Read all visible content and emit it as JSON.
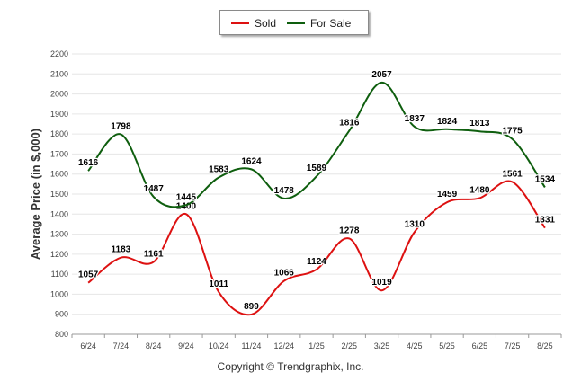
{
  "chart_data": {
    "type": "line",
    "title": "",
    "xlabel": "",
    "ylabel": "Average Price (in $,000)",
    "ylim": [
      800,
      2200
    ],
    "yticks": [
      800,
      900,
      1000,
      1100,
      1200,
      1300,
      1400,
      1500,
      1600,
      1700,
      1800,
      1900,
      2000,
      2100,
      2200
    ],
    "categories": [
      "6/24",
      "7/24",
      "8/24",
      "9/24",
      "10/24",
      "11/24",
      "12/24",
      "1/25",
      "2/25",
      "3/25",
      "4/25",
      "5/25",
      "6/25",
      "7/25",
      "8/25"
    ],
    "series": [
      {
        "name": "Sold",
        "color": "#dd1111",
        "values": [
          1057,
          1183,
          1161,
          1400,
          1011,
          899,
          1066,
          1124,
          1278,
          1019,
          1310,
          1459,
          1480,
          1561,
          1331
        ]
      },
      {
        "name": "For Sale",
        "color": "#0e5e0e",
        "values": [
          1616,
          1798,
          1487,
          1445,
          1583,
          1624,
          1478,
          1589,
          1816,
          2057,
          1837,
          1824,
          1813,
          1775,
          1534
        ]
      }
    ],
    "grid": true,
    "legend_position": "top-center",
    "smooth": true
  },
  "footer": {
    "copyright": "Copyright © Trendgraphix, Inc."
  }
}
